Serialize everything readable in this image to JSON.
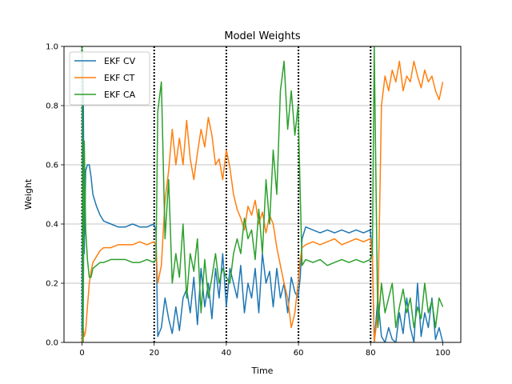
{
  "chart_data": {
    "type": "line",
    "title": "Model Weights",
    "xlabel": "Time",
    "ylabel": "Weight",
    "xlim": [
      -5,
      105
    ],
    "ylim": [
      0,
      1
    ],
    "x_ticks": [
      0,
      20,
      40,
      60,
      80,
      100
    ],
    "y_ticks": [
      0.0,
      0.2,
      0.4,
      0.6,
      0.8,
      1.0
    ],
    "x_tick_labels": [
      "0",
      "20",
      "40",
      "60",
      "80",
      "100"
    ],
    "y_tick_labels": [
      "0.0",
      "0.2",
      "0.4",
      "0.6",
      "0.8",
      "1.0"
    ],
    "grid": "horizontal",
    "legend_position": "top-left",
    "vertical_markers": [
      0,
      20,
      40,
      60,
      80
    ],
    "series": [
      {
        "name": "EKF CV",
        "color": "#1f77b4",
        "x": [
          0,
          0.3,
          0.6,
          1,
          1.5,
          2,
          2.5,
          3,
          4,
          5,
          6,
          8,
          10,
          12,
          14,
          16,
          18,
          19.9,
          20.5,
          21,
          22,
          23,
          24,
          25,
          26,
          27,
          28,
          29,
          30,
          31,
          32,
          33,
          34,
          35,
          36,
          37,
          38,
          39,
          40,
          41,
          42,
          43,
          44,
          45,
          46,
          47,
          48,
          49,
          50,
          51,
          52,
          53,
          54,
          55,
          56,
          57,
          58,
          59,
          59.9,
          60.5,
          61,
          62,
          64,
          66,
          68,
          70,
          72,
          74,
          76,
          78,
          79.9,
          80.5,
          81,
          82,
          83,
          84,
          85,
          86,
          87,
          88,
          89,
          90,
          91,
          92,
          93,
          94,
          95,
          96,
          97,
          98,
          99,
          100
        ],
        "values": [
          0.0,
          0.95,
          0.3,
          0.58,
          0.6,
          0.6,
          0.56,
          0.5,
          0.46,
          0.43,
          0.41,
          0.4,
          0.39,
          0.39,
          0.4,
          0.39,
          0.39,
          0.4,
          0.38,
          0.02,
          0.05,
          0.15,
          0.08,
          0.03,
          0.12,
          0.04,
          0.15,
          0.18,
          0.1,
          0.22,
          0.06,
          0.25,
          0.12,
          0.2,
          0.08,
          0.25,
          0.15,
          0.3,
          0.12,
          0.25,
          0.2,
          0.15,
          0.26,
          0.1,
          0.2,
          0.15,
          0.25,
          0.1,
          0.3,
          0.2,
          0.24,
          0.12,
          0.25,
          0.15,
          0.2,
          0.1,
          0.22,
          0.17,
          0.15,
          0.22,
          0.35,
          0.39,
          0.38,
          0.37,
          0.38,
          0.37,
          0.38,
          0.37,
          0.38,
          0.37,
          0.38,
          0.3,
          0.0,
          0.15,
          0.02,
          0.0,
          0.05,
          0.01,
          0.0,
          0.1,
          0.03,
          0.15,
          0.05,
          0.0,
          0.2,
          0.02,
          0.1,
          0.05,
          0.15,
          0.01,
          0.05,
          0.0
        ]
      },
      {
        "name": "EKF CT",
        "color": "#ff7f0e",
        "x": [
          0,
          0.3,
          0.6,
          1,
          1.5,
          2,
          2.5,
          3,
          4,
          5,
          6,
          8,
          10,
          12,
          14,
          16,
          18,
          19.9,
          20.5,
          21,
          22,
          23,
          24,
          25,
          26,
          27,
          28,
          29,
          30,
          31,
          32,
          33,
          34,
          35,
          36,
          37,
          38,
          39,
          40,
          41,
          42,
          43,
          44,
          45,
          46,
          47,
          48,
          49,
          50,
          51,
          52,
          53,
          54,
          55,
          56,
          57,
          58,
          59,
          59.9,
          60.5,
          61,
          62,
          64,
          66,
          68,
          70,
          72,
          74,
          76,
          78,
          79.9,
          80.5,
          81,
          82,
          83,
          84,
          85,
          86,
          87,
          88,
          89,
          90,
          91,
          92,
          93,
          94,
          95,
          96,
          97,
          98,
          99,
          100
        ],
        "values": [
          0.0,
          0.05,
          0.02,
          0.04,
          0.12,
          0.2,
          0.24,
          0.27,
          0.29,
          0.31,
          0.32,
          0.32,
          0.33,
          0.33,
          0.33,
          0.34,
          0.33,
          0.34,
          0.33,
          0.2,
          0.26,
          0.48,
          0.58,
          0.72,
          0.6,
          0.69,
          0.6,
          0.75,
          0.62,
          0.55,
          0.64,
          0.72,
          0.66,
          0.76,
          0.7,
          0.6,
          0.62,
          0.55,
          0.65,
          0.59,
          0.5,
          0.45,
          0.42,
          0.38,
          0.46,
          0.43,
          0.48,
          0.4,
          0.44,
          0.37,
          0.43,
          0.4,
          0.32,
          0.26,
          0.2,
          0.15,
          0.05,
          0.1,
          0.2,
          0.28,
          0.32,
          0.33,
          0.34,
          0.33,
          0.34,
          0.35,
          0.33,
          0.34,
          0.35,
          0.34,
          0.35,
          0.3,
          0.0,
          0.1,
          0.8,
          0.9,
          0.85,
          0.92,
          0.88,
          0.95,
          0.85,
          0.9,
          0.88,
          0.95,
          0.9,
          0.86,
          0.92,
          0.88,
          0.9,
          0.85,
          0.82,
          0.88
        ]
      },
      {
        "name": "EKF CA",
        "color": "#2ca02c",
        "x": [
          0,
          0.3,
          0.6,
          1,
          1.5,
          2,
          2.5,
          3,
          4,
          5,
          6,
          8,
          10,
          12,
          14,
          16,
          18,
          19.9,
          20.5,
          21,
          22,
          23,
          24,
          25,
          26,
          27,
          28,
          29,
          30,
          31,
          32,
          33,
          34,
          35,
          36,
          37,
          38,
          39,
          40,
          41,
          42,
          43,
          44,
          45,
          46,
          47,
          48,
          49,
          50,
          51,
          52,
          53,
          54,
          55,
          56,
          57,
          58,
          59,
          59.9,
          60.5,
          61,
          62,
          64,
          66,
          68,
          70,
          72,
          74,
          76,
          78,
          79.9,
          80.5,
          81,
          82,
          83,
          84,
          85,
          86,
          87,
          88,
          89,
          90,
          91,
          92,
          93,
          94,
          95,
          96,
          97,
          98,
          99,
          100
        ],
        "values": [
          1.0,
          0.0,
          0.68,
          0.38,
          0.28,
          0.22,
          0.22,
          0.25,
          0.26,
          0.27,
          0.27,
          0.28,
          0.28,
          0.28,
          0.27,
          0.27,
          0.28,
          0.27,
          0.28,
          0.78,
          0.88,
          0.35,
          0.55,
          0.2,
          0.3,
          0.22,
          0.4,
          0.15,
          0.3,
          0.24,
          0.35,
          0.1,
          0.28,
          0.15,
          0.22,
          0.3,
          0.2,
          0.25,
          0.22,
          0.2,
          0.3,
          0.35,
          0.3,
          0.42,
          0.35,
          0.38,
          0.28,
          0.45,
          0.3,
          0.55,
          0.4,
          0.65,
          0.5,
          0.85,
          0.95,
          0.72,
          0.85,
          0.7,
          0.8,
          0.5,
          0.26,
          0.28,
          0.27,
          0.28,
          0.26,
          0.27,
          0.28,
          0.27,
          0.28,
          0.27,
          0.28,
          0.3,
          1.0,
          0.05,
          0.2,
          0.1,
          0.15,
          0.2,
          0.05,
          0.12,
          0.18,
          0.1,
          0.15,
          0.05,
          0.12,
          0.08,
          0.2,
          0.1,
          0.14,
          0.05,
          0.15,
          0.12
        ]
      }
    ]
  }
}
